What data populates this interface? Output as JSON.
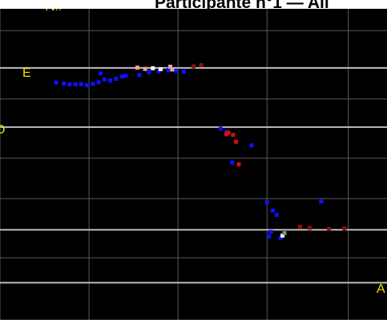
{
  "title": "Participante n°1 — All",
  "labels": {
    "top": "N#",
    "left_e": "E",
    "left_o": "O",
    "right_a": "A"
  },
  "colors": {
    "background": "#000000",
    "minor_grid": "#5a5a5a",
    "major_grid": "#bdbdbd",
    "label": "#f0e000",
    "blue": "#1010ff",
    "red": "#d01010",
    "darkred": "#8a1010",
    "pink": "#f0a0a0",
    "white": "#f0f0f0",
    "gray": "#8a8a8a"
  },
  "chart_data": {
    "type": "scatter",
    "title": "Participante n°1 — All",
    "xlim": [
      0,
      100
    ],
    "ylim": [
      0,
      100
    ],
    "grid": true,
    "major_y": [
      81,
      62,
      29,
      12
    ],
    "minor_y": [
      93,
      71,
      52,
      39,
      20,
      0
    ],
    "minor_x": [
      0,
      23,
      46,
      69,
      90
    ],
    "series": [
      {
        "color_key": "blue",
        "points": [
          [
            14.5,
            76.3
          ],
          [
            16.5,
            76
          ],
          [
            18,
            75.7
          ],
          [
            19.5,
            75.7
          ],
          [
            21,
            75.8
          ],
          [
            22.5,
            75.4
          ],
          [
            24,
            75.9
          ],
          [
            25.5,
            76.4
          ],
          [
            27,
            77.3
          ],
          [
            28.5,
            77
          ],
          [
            30,
            77.5
          ],
          [
            31.5,
            78.2
          ],
          [
            32.5,
            78.5
          ],
          [
            26,
            79.2
          ],
          [
            36,
            78.7
          ],
          [
            38.5,
            79.6
          ],
          [
            41,
            79.9
          ],
          [
            43.5,
            80.3
          ],
          [
            45.5,
            80.1
          ],
          [
            47.5,
            79.8
          ],
          [
            57,
            61.5
          ],
          [
            58.5,
            60.4
          ],
          [
            65,
            56.1
          ],
          [
            60,
            50.6
          ],
          [
            69,
            37.8
          ],
          [
            70.5,
            35.2
          ],
          [
            71.5,
            33.8
          ],
          [
            83,
            38.1
          ],
          [
            70,
            28.3
          ],
          [
            72.5,
            26.4
          ],
          [
            69.5,
            26.8
          ]
        ]
      },
      {
        "color_key": "red",
        "points": [
          [
            59,
            60.2
          ],
          [
            60.2,
            59.5
          ],
          [
            58.5,
            59.7
          ],
          [
            61,
            57.3
          ],
          [
            61.7,
            50
          ]
        ]
      },
      {
        "color_key": "darkred",
        "points": [
          [
            50,
            81.5
          ],
          [
            52,
            81.9
          ],
          [
            77.5,
            30
          ],
          [
            80,
            29.6
          ],
          [
            85,
            29.2
          ],
          [
            89,
            29.4
          ]
        ]
      },
      {
        "color_key": "pink",
        "points": [
          [
            35.5,
            81.1
          ],
          [
            37.5,
            80.7
          ],
          [
            44,
            81.4
          ],
          [
            44.5,
            80.5
          ]
        ]
      },
      {
        "color_key": "white",
        "points": [
          [
            39.5,
            80.9
          ],
          [
            41.5,
            80.6
          ],
          [
            73,
            27.1
          ]
        ]
      },
      {
        "color_key": "gray",
        "points": [
          [
            73.5,
            27.9
          ]
        ]
      }
    ]
  }
}
